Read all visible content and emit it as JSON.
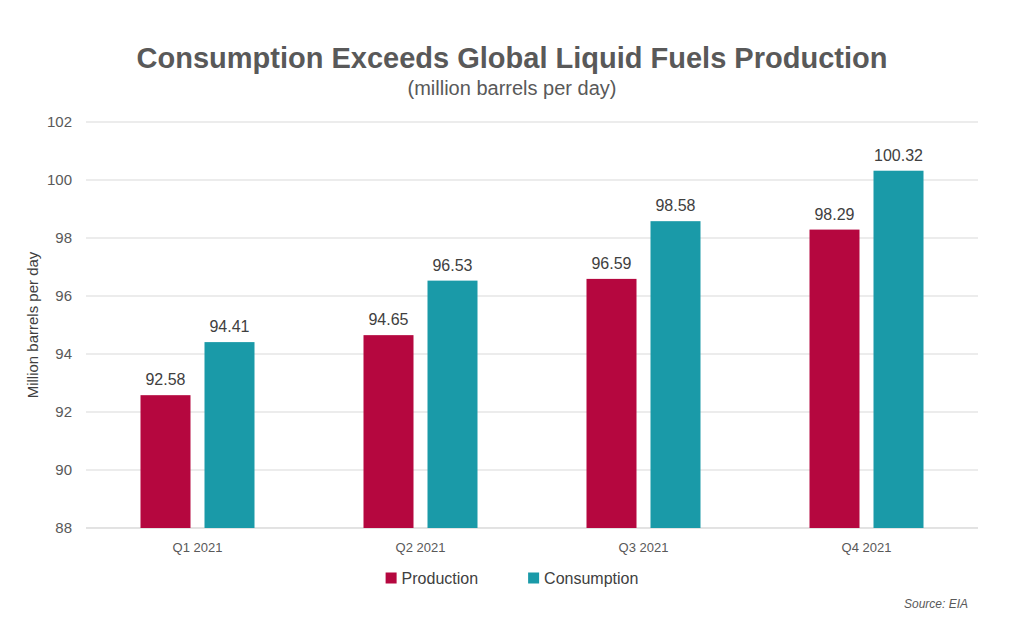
{
  "chart_data": {
    "type": "bar",
    "title": "Consumption Exceeds Global Liquid Fuels Production",
    "subtitle": "(million barrels per day)",
    "y_label": "Million barrels per day",
    "source": "Source: EIA",
    "categories": [
      "Q1 2021",
      "Q2 2021",
      "Q3 2021",
      "Q4 2021"
    ],
    "series": [
      {
        "name": "Production",
        "color": "#b5073f",
        "values": [
          92.58,
          94.65,
          96.59,
          98.29
        ]
      },
      {
        "name": "Consumption",
        "color": "#1a9aa8",
        "values": [
          94.41,
          96.53,
          98.58,
          100.32
        ]
      }
    ],
    "ylim": [
      88,
      102
    ],
    "yticks": [
      88,
      90,
      92,
      94,
      96,
      98,
      100,
      102
    ],
    "grid": true,
    "legend": "bottom",
    "data_labels": true
  }
}
